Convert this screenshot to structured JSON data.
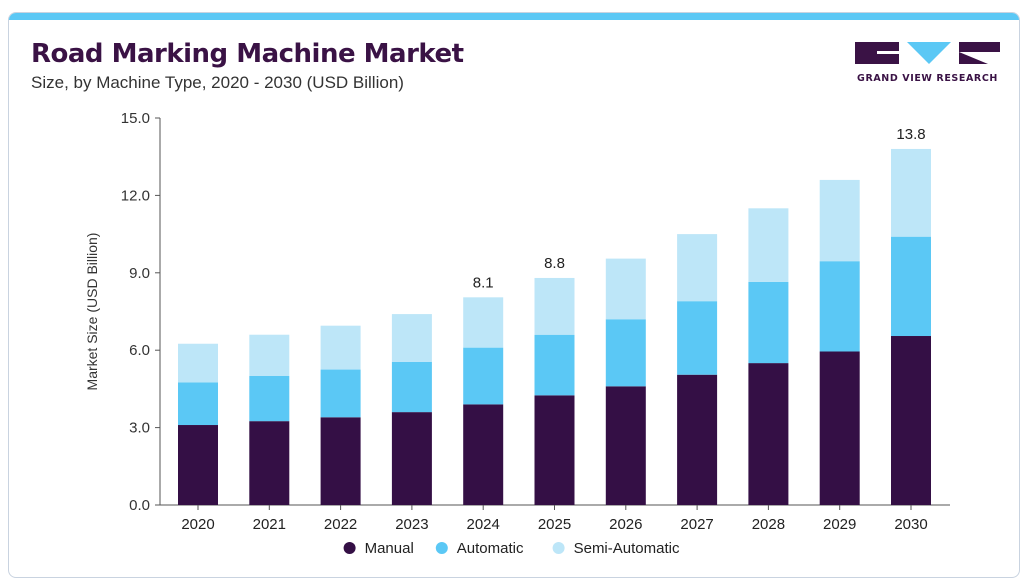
{
  "title": "Road Marking Machine Market",
  "subtitle": "Size, by Machine Type, 2020 - 2030 (USD Billion)",
  "logo": {
    "text": "GRAND VIEW RESEARCH"
  },
  "colors": {
    "manual": "#340f45",
    "automatic": "#5bc8f5",
    "semi_automatic": "#bde6f8",
    "accent_bar": "#5bc8f5"
  },
  "chart_data": {
    "type": "bar",
    "stacked": true,
    "categories": [
      "2020",
      "2021",
      "2022",
      "2023",
      "2024",
      "2025",
      "2026",
      "2027",
      "2028",
      "2029",
      "2030"
    ],
    "series": [
      {
        "name": "Manual",
        "color": "#340f45",
        "values": [
          3.1,
          3.25,
          3.4,
          3.6,
          3.9,
          4.25,
          4.6,
          5.05,
          5.5,
          5.95,
          6.55
        ]
      },
      {
        "name": "Automatic",
        "color": "#5bc8f5",
        "values": [
          1.65,
          1.75,
          1.85,
          1.95,
          2.2,
          2.35,
          2.6,
          2.85,
          3.15,
          3.5,
          3.85
        ]
      },
      {
        "name": "Semi-Automatic",
        "color": "#bde6f8",
        "values": [
          1.5,
          1.6,
          1.7,
          1.85,
          1.95,
          2.2,
          2.35,
          2.6,
          2.85,
          3.15,
          3.4
        ]
      }
    ],
    "data_labels": [
      {
        "category": "2024",
        "text": "8.1"
      },
      {
        "category": "2025",
        "text": "8.8"
      },
      {
        "category": "2030",
        "text": "13.8"
      }
    ],
    "ylabel": "Market Size (USD Billion)",
    "xlabel": "",
    "ylim": [
      0,
      15
    ],
    "yticks": [
      "0.0",
      "3.0",
      "6.0",
      "9.0",
      "12.0",
      "15.0"
    ],
    "ytick_values": [
      0,
      3,
      6,
      9,
      12,
      15
    ],
    "grid": false,
    "legend_position": "bottom"
  }
}
